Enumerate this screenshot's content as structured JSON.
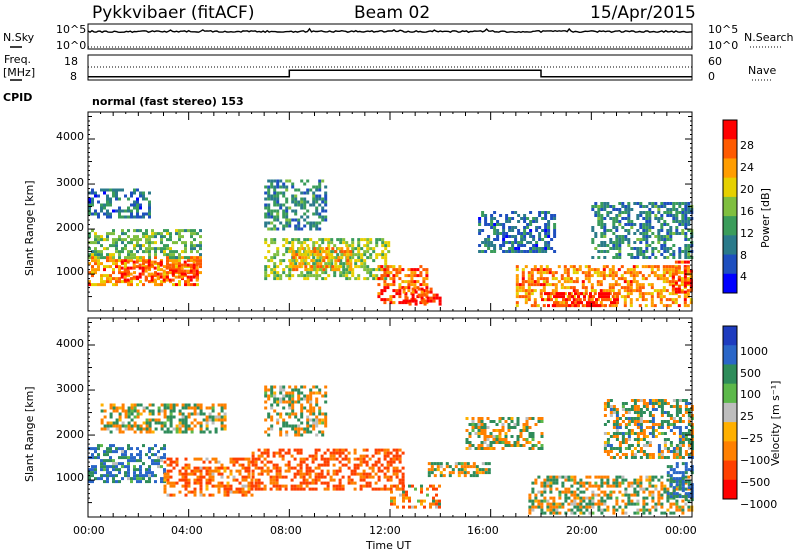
{
  "header": {
    "station": "Pykkvibaer (fitACF)",
    "beam": "Beam 02",
    "date": "15/Apr/2015"
  },
  "strips": {
    "nsky_label": "N.Sky",
    "nsearch_label": "N.Search",
    "freq_label_1": "Freq.",
    "freq_label_2": "[MHz]",
    "nave_label": "Nave",
    "cpid_label": "CPID",
    "cpid_value": "normal (fast stereo) 153",
    "nsky_ticks": [
      "10^5",
      "10^0"
    ],
    "nsearch_ticks": [
      "10^5",
      "10^0"
    ],
    "freq_ticks": [
      "18",
      "8"
    ],
    "nave_ticks": [
      "60",
      "0"
    ],
    "freq_steps": [
      {
        "t0": 0,
        "t1": 8,
        "v": 9.3
      },
      {
        "t0": 8,
        "t1": 18,
        "v": 11.9
      },
      {
        "t0": 18,
        "t1": 24,
        "v": 9.3
      }
    ]
  },
  "chart_data": [
    {
      "type": "heatmap",
      "name": "power",
      "xlabel": "",
      "ylabel": "Slant Range [km]",
      "xlim": [
        0,
        24
      ],
      "ylim": [
        180,
        4600
      ],
      "yticks": [
        1000,
        2000,
        3000,
        4000
      ],
      "colorbar": {
        "label": "Power [dB]",
        "ticks": [
          4,
          8,
          12,
          16,
          20,
          24,
          28
        ],
        "range": [
          0,
          32
        ],
        "colors": [
          "#0000ff",
          "#1e4fbf",
          "#2a7a8a",
          "#3a9c5a",
          "#7fbf3f",
          "#e6d000",
          "#ff9d00",
          "#ff5a00",
          "#ff0000"
        ]
      },
      "regions": [
        {
          "t0": 0.0,
          "t1": 4.5,
          "r0": 800,
          "r1": 1400,
          "value": 24
        },
        {
          "t0": 1.3,
          "t1": 4.3,
          "r0": 900,
          "r1": 1300,
          "value": 28
        },
        {
          "t0": 0.0,
          "t1": 4.5,
          "r0": 1400,
          "r1": 2000,
          "value": 14
        },
        {
          "t0": 0.0,
          "t1": 2.5,
          "r0": 2300,
          "r1": 2900,
          "value": 8
        },
        {
          "t0": 7.0,
          "t1": 12.0,
          "r0": 900,
          "r1": 1800,
          "value": 16
        },
        {
          "t0": 8.0,
          "t1": 10.5,
          "r0": 1100,
          "r1": 1600,
          "value": 22
        },
        {
          "t0": 7.0,
          "t1": 9.5,
          "r0": 2000,
          "r1": 3100,
          "value": 10
        },
        {
          "t0": 11.5,
          "t1": 13.5,
          "r0": 400,
          "r1": 1200,
          "value": 26
        },
        {
          "t0": 12.5,
          "t1": 14.0,
          "r0": 350,
          "r1": 700,
          "value": 29
        },
        {
          "t0": 15.5,
          "t1": 18.5,
          "r0": 1500,
          "r1": 2400,
          "value": 8
        },
        {
          "t0": 17.0,
          "t1": 24.0,
          "r0": 300,
          "r1": 1200,
          "value": 24
        },
        {
          "t0": 18.0,
          "t1": 21.0,
          "r0": 300,
          "r1": 600,
          "value": 30
        },
        {
          "t0": 20.0,
          "t1": 24.0,
          "r0": 1400,
          "r1": 2600,
          "value": 10
        },
        {
          "t0": 23.2,
          "t1": 24.0,
          "r0": 600,
          "r1": 1300,
          "value": 28
        }
      ]
    },
    {
      "type": "heatmap",
      "name": "velocity",
      "xlabel": "Time UT",
      "ylabel": "Slant Range [km]",
      "xlim": [
        0,
        24
      ],
      "ylim": [
        180,
        4600
      ],
      "xticks": [
        "00:00",
        "04:00",
        "08:00",
        "12:00",
        "16:00",
        "20:00",
        "00:00"
      ],
      "yticks": [
        1000,
        2000,
        3000,
        4000
      ],
      "colorbar": {
        "label": "Velocity [m s⁻¹]",
        "ticks": [
          "1000",
          "500",
          "100",
          "25",
          "−25",
          "−100",
          "−500",
          "−1000"
        ],
        "colors": [
          "#1e3cbf",
          "#2a66c8",
          "#2e8c5a",
          "#5cb84a",
          "#bdbdbd",
          "#ffb000",
          "#ff8000",
          "#ff4000",
          "#ff0000"
        ]
      },
      "regions": [
        {
          "t0": 0.0,
          "t1": 3.0,
          "r0": 1000,
          "r1": 1800,
          "value": 300
        },
        {
          "t0": 3.0,
          "t1": 6.5,
          "r0": 700,
          "r1": 1500,
          "value": -300
        },
        {
          "t0": 0.5,
          "t1": 5.5,
          "r0": 2100,
          "r1": 2700,
          "value": 0
        },
        {
          "t0": 6.5,
          "t1": 12.5,
          "r0": 800,
          "r1": 1700,
          "value": -400
        },
        {
          "t0": 7.0,
          "t1": 9.5,
          "r0": 2000,
          "r1": 3100,
          "value": 0
        },
        {
          "t0": 12.0,
          "t1": 14.0,
          "r0": 400,
          "r1": 900,
          "value": -200
        },
        {
          "t0": 13.5,
          "t1": 16.0,
          "r0": 1100,
          "r1": 1400,
          "value": 0
        },
        {
          "t0": 15.0,
          "t1": 18.0,
          "r0": 1700,
          "r1": 2400,
          "value": 0
        },
        {
          "t0": 17.5,
          "t1": 24.0,
          "r0": 300,
          "r1": 1100,
          "value": 0
        },
        {
          "t0": 20.5,
          "t1": 24.0,
          "r0": 1500,
          "r1": 2800,
          "value": 60
        },
        {
          "t0": 23.0,
          "t1": 24.0,
          "r0": 600,
          "r1": 1400,
          "value": 400
        }
      ]
    }
  ]
}
